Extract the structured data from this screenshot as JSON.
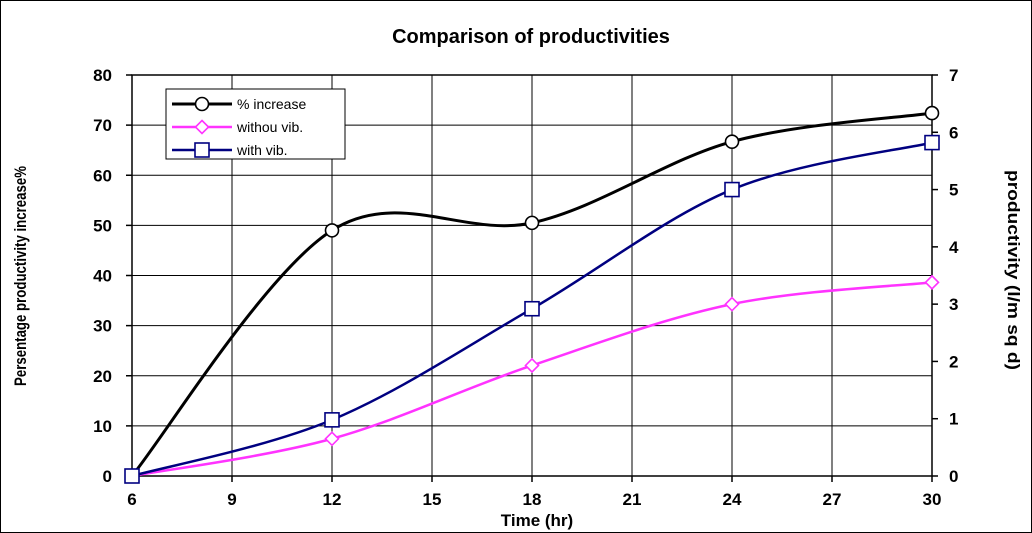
{
  "chart_data": {
    "type": "line",
    "title": "Comparison of productivities",
    "xlabel": "Time (hr)",
    "ylabel_left": "Persentage productivity increase%",
    "ylabel_right": "productivity (l/m sq d)",
    "xlim": [
      6,
      30
    ],
    "ylim_left": [
      0,
      80
    ],
    "ylim_right": [
      0,
      7
    ],
    "x_ticks": [
      6,
      9,
      12,
      15,
      18,
      21,
      24,
      27,
      30
    ],
    "y_left_ticks": [
      0,
      10,
      20,
      30,
      40,
      50,
      60,
      70,
      80
    ],
    "y_right_ticks": [
      0,
      1,
      2,
      3,
      4,
      5,
      6,
      7
    ],
    "grid": true,
    "legend_position": "top-left",
    "x": [
      6,
      12,
      18,
      24,
      30
    ],
    "series": [
      {
        "name": "% increase",
        "axis": "left",
        "color": "#000000",
        "marker": "circle",
        "values": [
          0,
          49,
          50.5,
          66.7,
          72.4
        ]
      },
      {
        "name": "withou vib.",
        "axis": "right",
        "color": "#ff33ff",
        "marker": "diamond",
        "values": [
          0,
          0.65,
          1.93,
          3.0,
          3.38
        ]
      },
      {
        "name": "with vib.",
        "axis": "right",
        "color": "#000080",
        "marker": "square",
        "values": [
          0,
          0.98,
          2.92,
          5.0,
          5.82
        ]
      }
    ]
  }
}
